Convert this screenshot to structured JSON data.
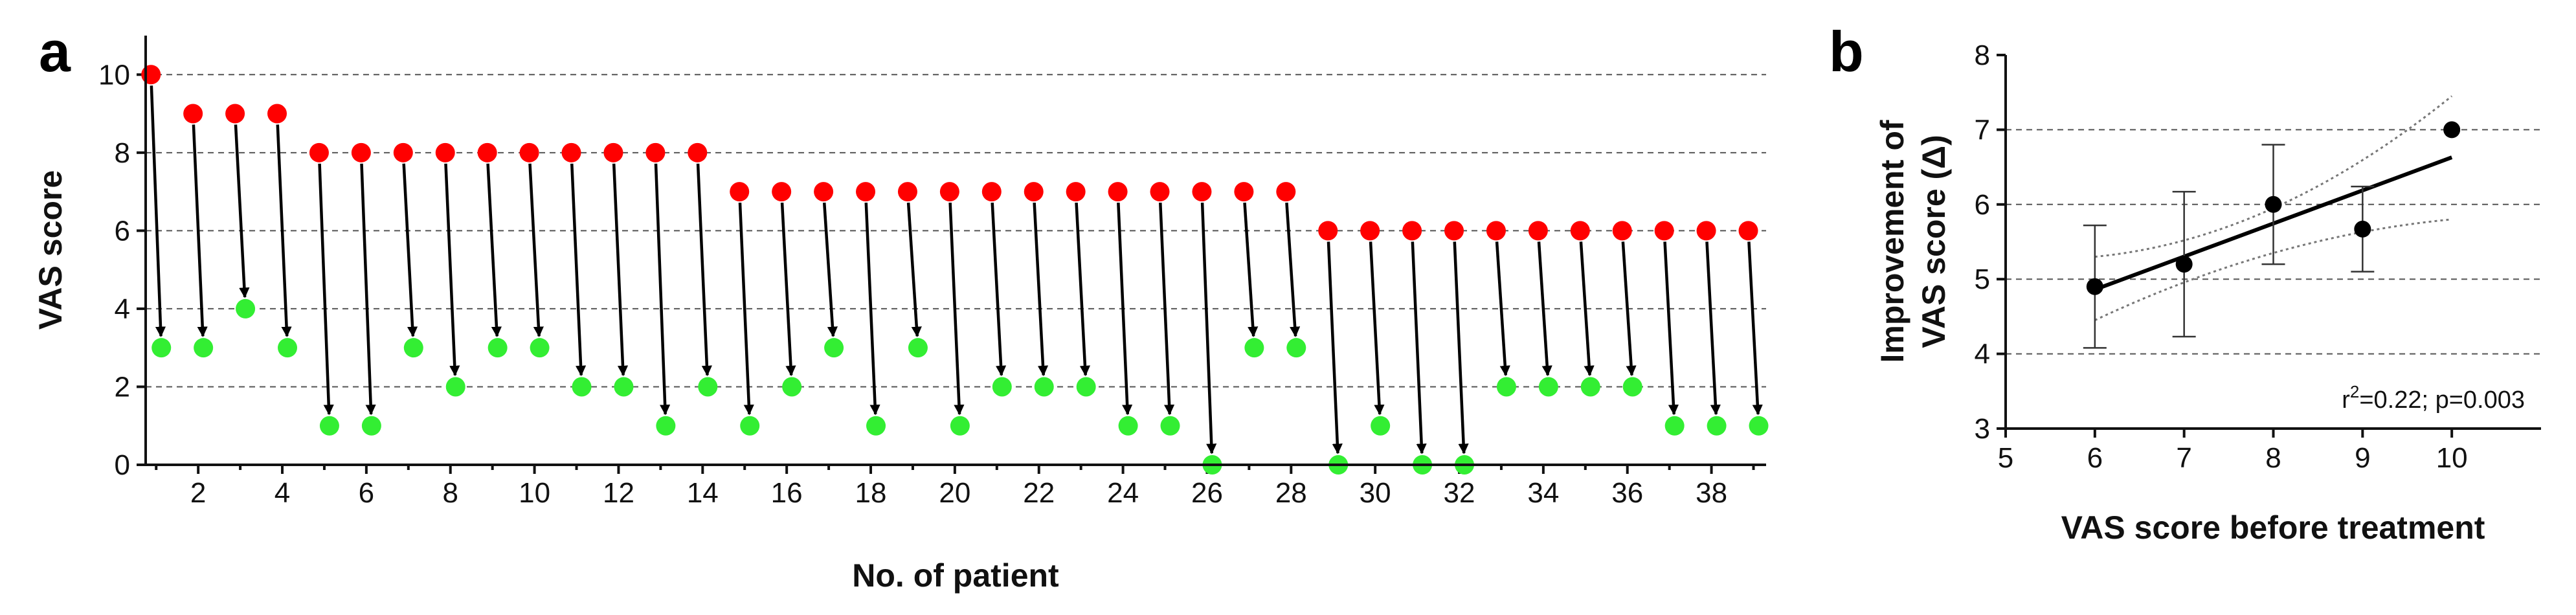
{
  "chart_data": [
    {
      "panel": "a",
      "type": "scatter",
      "xlabel": "No. of patient",
      "ylabel": "VAS score",
      "ylim": [
        0,
        11
      ],
      "yticks": [
        0,
        2,
        4,
        6,
        8,
        10
      ],
      "xticks": [
        2,
        4,
        6,
        8,
        10,
        12,
        14,
        16,
        18,
        20,
        22,
        24,
        26,
        28,
        30,
        32,
        34,
        36,
        38
      ],
      "grid": "horizontal dashed",
      "colors": {
        "before": "#ff0000",
        "after": "#33ee33",
        "arrow": "#000000"
      },
      "x": [
        1,
        2,
        3,
        4,
        5,
        6,
        7,
        8,
        9,
        10,
        11,
        12,
        13,
        14,
        15,
        16,
        17,
        18,
        19,
        20,
        21,
        22,
        23,
        24,
        25,
        26,
        27,
        28,
        29,
        30,
        31,
        32,
        33,
        34,
        35,
        36,
        37,
        38,
        39
      ],
      "series": [
        {
          "values": [
            10,
            9,
            9,
            9,
            8,
            8,
            8,
            8,
            8,
            8,
            8,
            8,
            8,
            8,
            7,
            7,
            7,
            7,
            7,
            7,
            7,
            7,
            7,
            7,
            7,
            7,
            7,
            7,
            6,
            6,
            6,
            6,
            6,
            6,
            6,
            6,
            6,
            6,
            6
          ]
        },
        {
          "values": [
            3,
            3,
            4,
            3,
            1,
            1,
            3,
            2,
            3,
            3,
            2,
            2,
            1,
            2,
            1,
            2,
            3,
            1,
            3,
            1,
            2,
            2,
            2,
            1,
            1,
            0,
            3,
            3,
            0,
            1,
            0,
            0,
            2,
            2,
            2,
            2,
            1,
            1,
            1
          ]
        }
      ]
    },
    {
      "panel": "b",
      "type": "scatter",
      "xlabel": "VAS score before treatment",
      "ylabel_lines": [
        "Improvement of",
        "VAS score (Δ)"
      ],
      "xlim": [
        5,
        11
      ],
      "ylim": [
        3,
        8
      ],
      "xticks": [
        5,
        6,
        7,
        8,
        9,
        10
      ],
      "yticks": [
        3,
        4,
        5,
        6,
        7,
        8
      ],
      "grid": "horizontal dashed",
      "points": [
        {
          "x": 6,
          "y": 4.9,
          "err_low": 4.08,
          "err_high": 5.72
        },
        {
          "x": 7,
          "y": 5.2,
          "err_low": 4.23,
          "err_high": 6.17
        },
        {
          "x": 8,
          "y": 6.0,
          "err_low": 5.2,
          "err_high": 6.8
        },
        {
          "x": 9,
          "y": 5.67,
          "err_low": 5.1,
          "err_high": 6.24
        },
        {
          "x": 10,
          "y": 7.0,
          "err_low": 7.0,
          "err_high": 7.0
        }
      ],
      "regression": {
        "x0": 6,
        "y0": 4.86,
        "x1": 10,
        "y1": 6.63
      },
      "ci_upper": [
        {
          "x": 6,
          "y": 5.3
        },
        {
          "x": 8,
          "y": 5.95
        },
        {
          "x": 10,
          "y": 7.45
        }
      ],
      "ci_lower": [
        {
          "x": 6,
          "y": 4.45
        },
        {
          "x": 8,
          "y": 5.35
        },
        {
          "x": 10,
          "y": 5.8
        }
      ],
      "annotation_r": "r",
      "annotation_sup": "2",
      "annotation_rest": "=0.22; p=0.003"
    }
  ]
}
